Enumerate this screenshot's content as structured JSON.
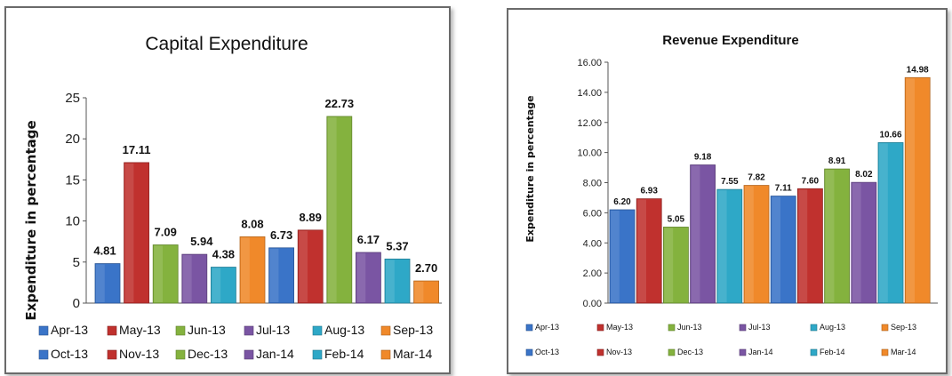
{
  "chart_data": [
    {
      "type": "bar",
      "title": "Capital Expenditure",
      "ylabel": "Expenditure in percentage",
      "ylim": [
        0,
        25
      ],
      "yticks": [
        "0",
        "5",
        "10",
        "15",
        "20",
        "25"
      ],
      "categories": [
        "Apr-13",
        "May-13",
        "Jun-13",
        "Jul-13",
        "Aug-13",
        "Sep-13",
        "Oct-13",
        "Nov-13",
        "Dec-13",
        "Jan-14",
        "Feb-14",
        "Mar-14"
      ],
      "values": [
        4.81,
        17.11,
        7.09,
        5.94,
        4.38,
        8.08,
        6.73,
        8.89,
        22.73,
        6.17,
        5.37,
        2.7
      ],
      "data_labels": [
        "4.81",
        "17.11",
        "7.09",
        "5.94",
        "4.38",
        "8.08",
        "6.73",
        "8.89",
        "22.73",
        "6.17",
        "5.37",
        "2.70"
      ],
      "colors": [
        "#3a74c8",
        "#c0312e",
        "#84b23e",
        "#7a55a3",
        "#2ea8c7",
        "#f0892a",
        "#3a74c8",
        "#c0312e",
        "#84b23e",
        "#7a55a3",
        "#2ea8c7",
        "#f0892a"
      ],
      "legend": "bottom",
      "grid": false
    },
    {
      "type": "bar",
      "title": "Revenue Expenditure",
      "ylabel": "Expenditure in percentage",
      "ylim": [
        0,
        16
      ],
      "yticks": [
        "0.00",
        "2.00",
        "4.00",
        "6.00",
        "8.00",
        "10.00",
        "12.00",
        "14.00",
        "16.00"
      ],
      "categories": [
        "Apr-13",
        "May-13",
        "Jun-13",
        "Jul-13",
        "Aug-13",
        "Sep-13",
        "Oct-13",
        "Nov-13",
        "Dec-13",
        "Jan-14",
        "Feb-14",
        "Mar-14"
      ],
      "values": [
        6.2,
        6.93,
        5.05,
        9.18,
        7.55,
        7.82,
        7.11,
        7.6,
        8.91,
        8.02,
        10.66,
        14.98
      ],
      "data_labels": [
        "6.20",
        "6.93",
        "5.05",
        "9.18",
        "7.55",
        "7.82",
        "7.11",
        "7.60",
        "8.91",
        "8.02",
        "10.66",
        "14.98"
      ],
      "colors": [
        "#3a74c8",
        "#c0312e",
        "#84b23e",
        "#7a55a3",
        "#2ea8c7",
        "#f0892a",
        "#3a74c8",
        "#c0312e",
        "#84b23e",
        "#7a55a3",
        "#2ea8c7",
        "#f0892a"
      ],
      "legend": "bottom",
      "grid": false
    }
  ]
}
